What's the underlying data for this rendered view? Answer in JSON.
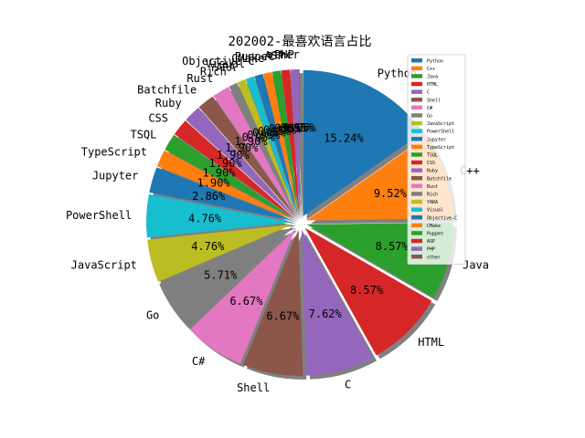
{
  "chart_data": {
    "type": "pie",
    "title": "202002-最喜欢语言占比",
    "legend_position": "right",
    "categories": [
      "Python",
      "C++",
      "Java",
      "HTML",
      "C",
      "Shell",
      "C#",
      "Go",
      "JavaScript",
      "PowerShell",
      "Jupyter",
      "TypeScript",
      "TSQL",
      "CSS",
      "Ruby",
      "Batchfile",
      "Rust",
      "Rich",
      "YARA",
      "Visual",
      "Objective-C",
      "CMake",
      "Puppet",
      "ASP",
      "PHP",
      "other"
    ],
    "values": [
      15.24,
      9.52,
      8.57,
      8.57,
      7.62,
      6.67,
      6.67,
      5.71,
      4.76,
      4.76,
      2.86,
      1.9,
      1.9,
      1.9,
      1.9,
      1.9,
      1.9,
      0.95,
      0.95,
      0.95,
      0.95,
      0.95,
      0.95,
      0.95,
      0.95,
      0.05
    ],
    "labels": [
      "15.24%",
      "9.52%",
      "8.57%",
      "8.57%",
      "7.62%",
      "6.67%",
      "6.67%",
      "5.71%",
      "4.76%",
      "4.76%",
      "2.86%",
      "1.90%",
      "1.90%",
      "1.90%",
      "1.90%",
      "1.90%",
      "1.90%",
      "0.95%",
      "0.95%",
      "0.95%",
      "0.95%",
      "0.95%",
      "0.95%",
      "0.95%",
      "0.95%",
      "0.05%"
    ],
    "colors": [
      "#1f77b4",
      "#ff7f0e",
      "#2ca02c",
      "#d62728",
      "#9467bd",
      "#8c564b",
      "#e377c2",
      "#7f7f7f",
      "#bcbd22",
      "#17becf",
      "#1f77b4",
      "#ff7f0e",
      "#2ca02c",
      "#d62728",
      "#9467bd",
      "#8c564b",
      "#e377c2",
      "#7f7f7f",
      "#bcbd22",
      "#17becf",
      "#1f77b4",
      "#ff7f0e",
      "#2ca02c",
      "#d62728",
      "#9467bd",
      "#8c564b"
    ],
    "shadow_color": "#808080",
    "explode": true,
    "shadow": true,
    "start_angle_deg": 90
  }
}
